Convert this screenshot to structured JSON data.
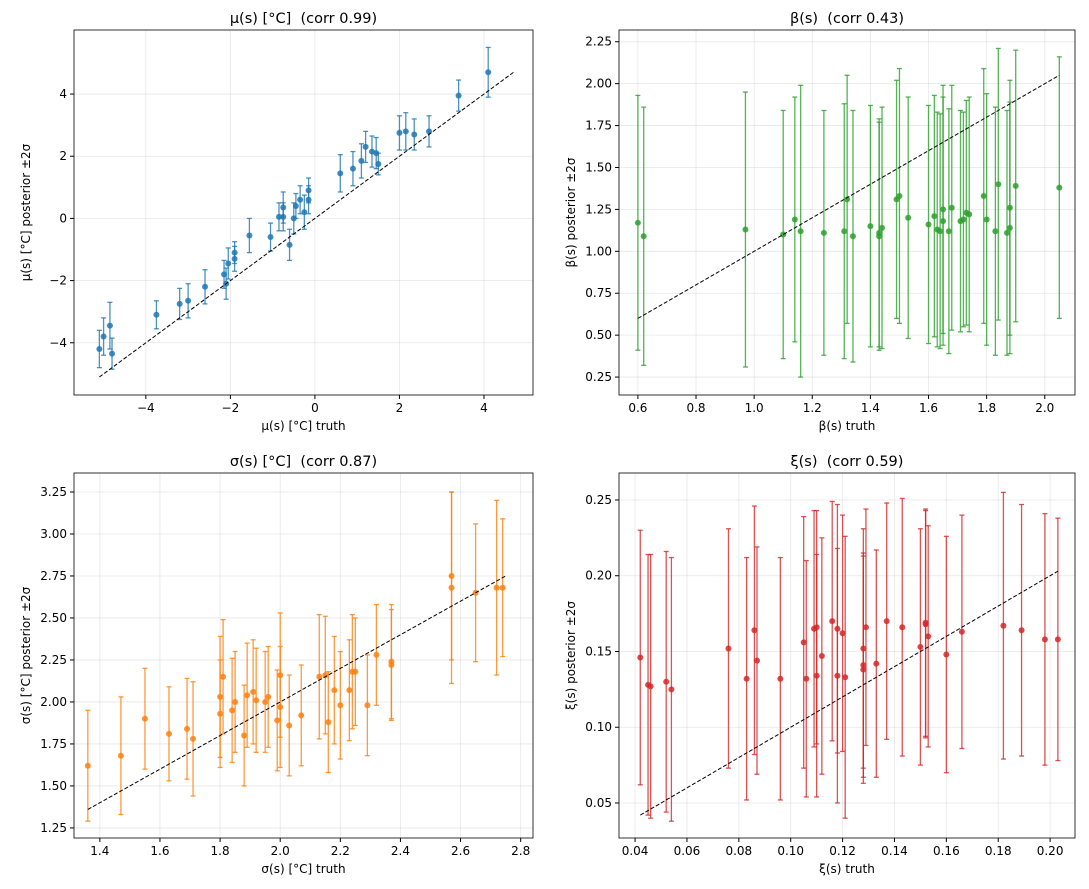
{
  "chart_data": [
    {
      "type": "scatter",
      "title": "μ(s) [°C]  (corr 0.99)",
      "xlabel": "μ(s) [°C] truth",
      "ylabel": "μ(s) [°C] posterior ±2σ",
      "color": "#1f77b4",
      "grid": true,
      "xlim": [
        -5.7,
        5.16
      ],
      "ylim": [
        -5.68,
        6.06
      ],
      "xticks": [
        {
          "value": -4,
          "label": "−4"
        },
        {
          "value": -2,
          "label": "−2"
        },
        0,
        2,
        4
      ],
      "yticks": [
        {
          "value": -4,
          "label": "−4"
        },
        {
          "value": -2,
          "label": "−2"
        },
        0,
        2,
        4
      ],
      "x": [
        -5.1,
        -5.0,
        -4.85,
        -4.8,
        -3.75,
        -3.2,
        -3.0,
        -2.6,
        -2.15,
        -2.1,
        -2.05,
        -1.9,
        -1.9,
        -1.55,
        -1.05,
        -0.85,
        -0.75,
        -0.75,
        -0.6,
        -0.5,
        -0.45,
        -0.35,
        -0.25,
        -0.15,
        -0.15,
        0.6,
        0.9,
        1.1,
        1.2,
        1.35,
        1.45,
        1.5,
        2.0,
        2.15,
        2.35,
        2.7,
        3.4,
        4.1
      ],
      "values": [
        -4.2,
        -3.8,
        -3.45,
        -4.35,
        -3.1,
        -2.75,
        -2.65,
        -2.2,
        -1.8,
        -2.1,
        -1.45,
        -1.1,
        -1.3,
        -0.55,
        -0.6,
        0.05,
        0.05,
        0.35,
        -0.85,
        0.0,
        0.4,
        0.6,
        0.2,
        0.6,
        0.9,
        1.45,
        1.6,
        1.85,
        2.3,
        2.15,
        2.1,
        1.75,
        2.75,
        2.8,
        2.7,
        2.8,
        3.95,
        4.7
      ],
      "errors": [
        0.6,
        0.6,
        0.75,
        0.5,
        0.45,
        0.5,
        0.55,
        0.55,
        0.45,
        0.5,
        0.5,
        0.35,
        0.4,
        0.55,
        0.45,
        0.45,
        0.45,
        0.5,
        0.5,
        0.5,
        0.4,
        0.45,
        0.55,
        0.45,
        0.4,
        0.6,
        0.55,
        0.55,
        0.5,
        0.5,
        0.5,
        0.35,
        0.55,
        0.6,
        0.5,
        0.5,
        0.5,
        0.8
      ]
    },
    {
      "type": "scatter",
      "title": "β(s)  (corr 0.43)",
      "xlabel": "β(s) truth",
      "ylabel": "β(s) posterior ±2σ",
      "color": "#2ca02c",
      "grid": true,
      "xlim": [
        0.535,
        2.104
      ],
      "ylim": [
        0.143,
        2.32
      ],
      "xticks": [
        0.6,
        0.8,
        {
          "value": 1,
          "label": "1.0"
        },
        1.2,
        1.4,
        1.6,
        1.8,
        {
          "value": 2,
          "label": "2.0"
        }
      ],
      "yticks": [
        0.25,
        {
          "value": 0.5,
          "label": "0.50"
        },
        0.75,
        {
          "value": 1,
          "label": "1.00"
        },
        1.25,
        {
          "value": 1.5,
          "label": "1.50"
        },
        1.75,
        {
          "value": 2,
          "label": "2.00"
        },
        2.25
      ],
      "x": [
        0.6,
        0.62,
        0.97,
        1.1,
        1.14,
        1.16,
        1.24,
        1.31,
        1.32,
        1.34,
        1.4,
        1.43,
        1.43,
        1.44,
        1.49,
        1.5,
        1.53,
        1.6,
        1.62,
        1.63,
        1.64,
        1.65,
        1.65,
        1.67,
        1.68,
        1.71,
        1.72,
        1.73,
        1.74,
        1.79,
        1.8,
        1.83,
        1.84,
        1.87,
        1.88,
        1.88,
        1.9,
        2.05
      ],
      "values": [
        1.17,
        1.09,
        1.13,
        1.1,
        1.19,
        1.12,
        1.11,
        1.12,
        1.31,
        1.09,
        1.15,
        1.09,
        1.11,
        1.14,
        1.31,
        1.33,
        1.2,
        1.16,
        1.21,
        1.13,
        1.12,
        1.18,
        1.25,
        1.12,
        1.26,
        1.18,
        1.19,
        1.23,
        1.22,
        1.33,
        1.19,
        1.12,
        1.4,
        1.11,
        1.26,
        1.14,
        1.39,
        1.38
      ],
      "errors": [
        0.76,
        0.77,
        0.82,
        0.74,
        0.73,
        0.87,
        0.73,
        0.76,
        0.74,
        0.75,
        0.72,
        0.68,
        0.68,
        0.72,
        0.71,
        0.76,
        0.72,
        0.71,
        0.72,
        0.7,
        0.7,
        0.74,
        0.74,
        0.73,
        0.73,
        0.66,
        0.64,
        0.67,
        0.7,
        0.76,
        0.75,
        0.74,
        0.81,
        0.73,
        0.76,
        0.75,
        0.81,
        0.78
      ]
    },
    {
      "type": "scatter",
      "title": "σ(s) [°C]  (corr 0.87)",
      "xlabel": "σ(s) [°C] truth",
      "ylabel": "σ(s) [°C] posterior ±2σ",
      "color": "#ff7f0e",
      "grid": true,
      "xlim": [
        1.314,
        2.841
      ],
      "ylim": [
        1.19,
        3.363
      ],
      "xticks": [
        1.4,
        1.6,
        1.8,
        {
          "value": 2,
          "label": "2.0"
        },
        2.2,
        2.4,
        2.6,
        2.8
      ],
      "yticks": [
        1.25,
        {
          "value": 1.5,
          "label": "1.50"
        },
        1.75,
        {
          "value": 2,
          "label": "2.00"
        },
        2.25,
        {
          "value": 2.5,
          "label": "2.50"
        },
        2.75,
        {
          "value": 3,
          "label": "3.00"
        },
        3.25
      ],
      "x": [
        1.36,
        1.47,
        1.55,
        1.63,
        1.69,
        1.71,
        1.8,
        1.8,
        1.81,
        1.84,
        1.85,
        1.88,
        1.89,
        1.91,
        1.92,
        1.95,
        1.96,
        1.99,
        2.0,
        2.0,
        2.03,
        2.07,
        2.13,
        2.15,
        2.16,
        2.18,
        2.2,
        2.23,
        2.24,
        2.25,
        2.29,
        2.32,
        2.37,
        2.37,
        2.57,
        2.57,
        2.65,
        2.72,
        2.74
      ],
      "values": [
        1.62,
        1.68,
        1.9,
        1.81,
        1.84,
        1.78,
        2.03,
        1.93,
        2.15,
        1.95,
        2.0,
        1.8,
        2.04,
        2.06,
        2.01,
        2.0,
        2.03,
        1.89,
        2.16,
        1.97,
        1.86,
        1.92,
        2.15,
        2.16,
        1.88,
        2.07,
        1.98,
        2.07,
        2.18,
        2.18,
        1.98,
        2.28,
        2.24,
        2.22,
        2.68,
        2.75,
        2.65,
        2.68,
        2.68
      ],
      "errors": [
        0.33,
        0.35,
        0.3,
        0.28,
        0.3,
        0.34,
        0.36,
        0.32,
        0.34,
        0.31,
        0.3,
        0.3,
        0.31,
        0.31,
        0.31,
        0.3,
        0.3,
        0.3,
        0.37,
        0.36,
        0.3,
        0.3,
        0.37,
        0.35,
        0.3,
        0.32,
        0.32,
        0.3,
        0.34,
        0.32,
        0.3,
        0.3,
        0.34,
        0.33,
        0.57,
        0.5,
        0.41,
        0.52,
        0.41
      ]
    },
    {
      "type": "scatter",
      "title": "ξ(s)  (corr 0.59)",
      "xlabel": "ξ(s) truth",
      "ylabel": "ξ(s) posterior ±2σ",
      "color": "#d62728",
      "grid": true,
      "xlim": [
        0.0338,
        0.2096
      ],
      "ylim": [
        0.0269,
        0.2678
      ],
      "xticks": [
        0.04,
        0.06,
        0.08,
        {
          "value": 0.1,
          "label": "0.10"
        },
        0.12,
        0.14,
        0.16,
        0.18,
        {
          "value": 0.2,
          "label": "0.20"
        }
      ],
      "yticks": [
        0.05,
        {
          "value": 0.1,
          "label": "0.10"
        },
        0.15,
        {
          "value": 0.2,
          "label": "0.20"
        },
        0.25
      ],
      "x": [
        0.042,
        0.045,
        0.046,
        0.052,
        0.054,
        0.076,
        0.083,
        0.086,
        0.087,
        0.096,
        0.105,
        0.106,
        0.109,
        0.11,
        0.11,
        0.112,
        0.116,
        0.118,
        0.118,
        0.12,
        0.121,
        0.128,
        0.128,
        0.128,
        0.129,
        0.133,
        0.137,
        0.143,
        0.15,
        0.152,
        0.152,
        0.153,
        0.16,
        0.166,
        0.182,
        0.189,
        0.198,
        0.203
      ],
      "values": [
        0.146,
        0.128,
        0.127,
        0.13,
        0.125,
        0.152,
        0.132,
        0.164,
        0.144,
        0.132,
        0.156,
        0.132,
        0.165,
        0.134,
        0.166,
        0.147,
        0.17,
        0.134,
        0.165,
        0.162,
        0.133,
        0.138,
        0.141,
        0.152,
        0.166,
        0.142,
        0.17,
        0.166,
        0.153,
        0.168,
        0.169,
        0.16,
        0.148,
        0.163,
        0.167,
        0.164,
        0.158,
        0.158
      ],
      "errors": [
        0.084,
        0.086,
        0.087,
        0.086,
        0.087,
        0.079,
        0.08,
        0.082,
        0.075,
        0.08,
        0.083,
        0.078,
        0.078,
        0.08,
        0.077,
        0.078,
        0.079,
        0.084,
        0.082,
        0.078,
        0.093,
        0.075,
        0.074,
        0.079,
        0.078,
        0.075,
        0.078,
        0.085,
        0.078,
        0.075,
        0.075,
        0.073,
        0.078,
        0.077,
        0.088,
        0.083,
        0.083,
        0.08
      ]
    }
  ]
}
